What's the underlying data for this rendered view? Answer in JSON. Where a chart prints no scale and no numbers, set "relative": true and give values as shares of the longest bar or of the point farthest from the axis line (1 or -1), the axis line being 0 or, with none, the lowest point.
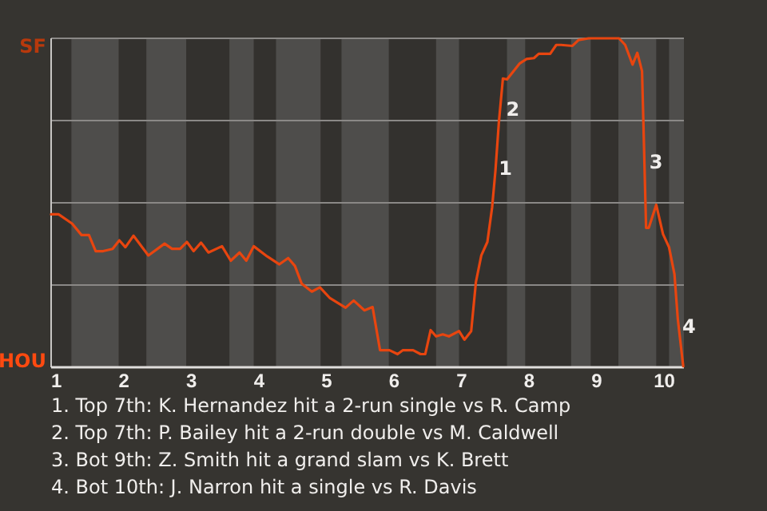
{
  "chart_data": {
    "type": "line",
    "relative": true,
    "x": [
      0.92,
      1.03,
      1.23,
      1.37,
      1.48,
      1.58,
      1.69,
      1.83,
      1.93,
      2.02,
      2.14,
      2.36,
      2.6,
      2.71,
      2.83,
      2.93,
      3.03,
      3.14,
      3.25,
      3.45,
      3.58,
      3.71,
      3.81,
      3.92,
      4.12,
      4.3,
      4.43,
      4.53,
      4.63,
      4.78,
      4.9,
      5.05,
      5.28,
      5.4,
      5.56,
      5.68,
      5.79,
      5.93,
      6.05,
      6.13,
      6.28,
      6.39,
      6.46,
      6.54,
      6.62,
      6.72,
      6.81,
      6.96,
      7.04,
      7.14,
      7.21,
      7.29,
      7.38,
      7.45,
      7.5,
      7.55,
      7.61,
      7.67,
      7.86,
      7.96,
      8.07,
      8.14,
      8.31,
      8.4,
      8.47,
      8.64,
      8.73,
      8.88,
      9.33,
      9.42,
      9.53,
      9.6,
      9.67,
      9.7,
      9.73,
      9.77,
      9.88,
      9.98,
      10.07,
      10.15,
      10.2,
      10.28
    ],
    "series": [
      {
        "color": "#e8450f",
        "values": [
          0.465,
          0.465,
          0.437,
          0.402,
          0.402,
          0.353,
          0.353,
          0.36,
          0.386,
          0.365,
          0.4,
          0.34,
          0.376,
          0.36,
          0.36,
          0.381,
          0.353,
          0.379,
          0.349,
          0.368,
          0.324,
          0.349,
          0.324,
          0.368,
          0.337,
          0.313,
          0.332,
          0.308,
          0.254,
          0.23,
          0.243,
          0.21,
          0.181,
          0.203,
          0.173,
          0.183,
          0.052,
          0.052,
          0.04,
          0.052,
          0.052,
          0.04,
          0.04,
          0.113,
          0.094,
          0.1,
          0.094,
          0.11,
          0.084,
          0.11,
          0.259,
          0.34,
          0.381,
          0.486,
          0.6,
          0.745,
          0.878,
          0.875,
          0.924,
          0.937,
          0.94,
          0.953,
          0.953,
          0.98,
          0.98,
          0.977,
          0.995,
          1,
          1,
          0.98,
          0.92,
          0.956,
          0.9,
          0.665,
          0.424,
          0.424,
          0.494,
          0.405,
          0.365,
          0.283,
          0.146,
          0.003
        ]
      }
    ],
    "xlim": [
      0.92,
      10.29
    ],
    "xticks": [
      1,
      2,
      3,
      4,
      5,
      6,
      7,
      8,
      9,
      10
    ],
    "marker": "none",
    "line_style": "solid",
    "ref_lines": [
      {
        "axis": "y",
        "value": 0.25,
        "color": "#8a8886"
      },
      {
        "axis": "y",
        "value": 0.5,
        "color": "#8a8886"
      },
      {
        "axis": "y",
        "value": 0.75,
        "color": "#8a8886"
      },
      {
        "axis": "y",
        "value": 1,
        "color": "#8a8886"
      }
    ],
    "bands": [
      {
        "axis": "x",
        "from": 1.22,
        "to": 1.92,
        "color": "#4e4d4b"
      },
      {
        "axis": "x",
        "from": 2.33,
        "to": 2.92,
        "color": "#4e4d4b"
      },
      {
        "axis": "x",
        "from": 3.56,
        "to": 3.92,
        "color": "#4e4d4b"
      },
      {
        "axis": "x",
        "from": 4.25,
        "to": 4.91,
        "color": "#4e4d4b"
      },
      {
        "axis": "x",
        "from": 5.22,
        "to": 5.92,
        "color": "#4e4d4b"
      },
      {
        "axis": "x",
        "from": 6.62,
        "to": 6.96,
        "color": "#4e4d4b"
      },
      {
        "axis": "x",
        "from": 7.67,
        "to": 7.94,
        "color": "#4e4d4b"
      },
      {
        "axis": "x",
        "from": 8.62,
        "to": 8.91,
        "color": "#4e4d4b"
      },
      {
        "axis": "x",
        "from": 9.32,
        "to": 9.88,
        "color": "#4e4d4b"
      },
      {
        "axis": "x",
        "from": 10.07,
        "to": 10.29,
        "color": "#4e4d4b"
      }
    ],
    "annotations": [
      "SF",
      "HOU",
      {
        "text": "1",
        "x": 7.5,
        "y": 0.6
      },
      {
        "text": "2",
        "x": 7.61,
        "y": 0.78
      },
      {
        "text": "3",
        "x": 9.73,
        "y": 0.62
      },
      {
        "text": "4",
        "x": 10.22,
        "y": 0.12
      },
      "1. Top 7th: K. Hernandez hit a 2-run single vs R. Camp",
      "2. Top 7th: P. Bailey hit a 2-run double vs M. Caldwell",
      "3. Bot 9th: Z. Smith hit a grand slam vs K. Brett",
      "4. Bot 10th: J. Narron hit a single vs R. Davis"
    ]
  }
}
